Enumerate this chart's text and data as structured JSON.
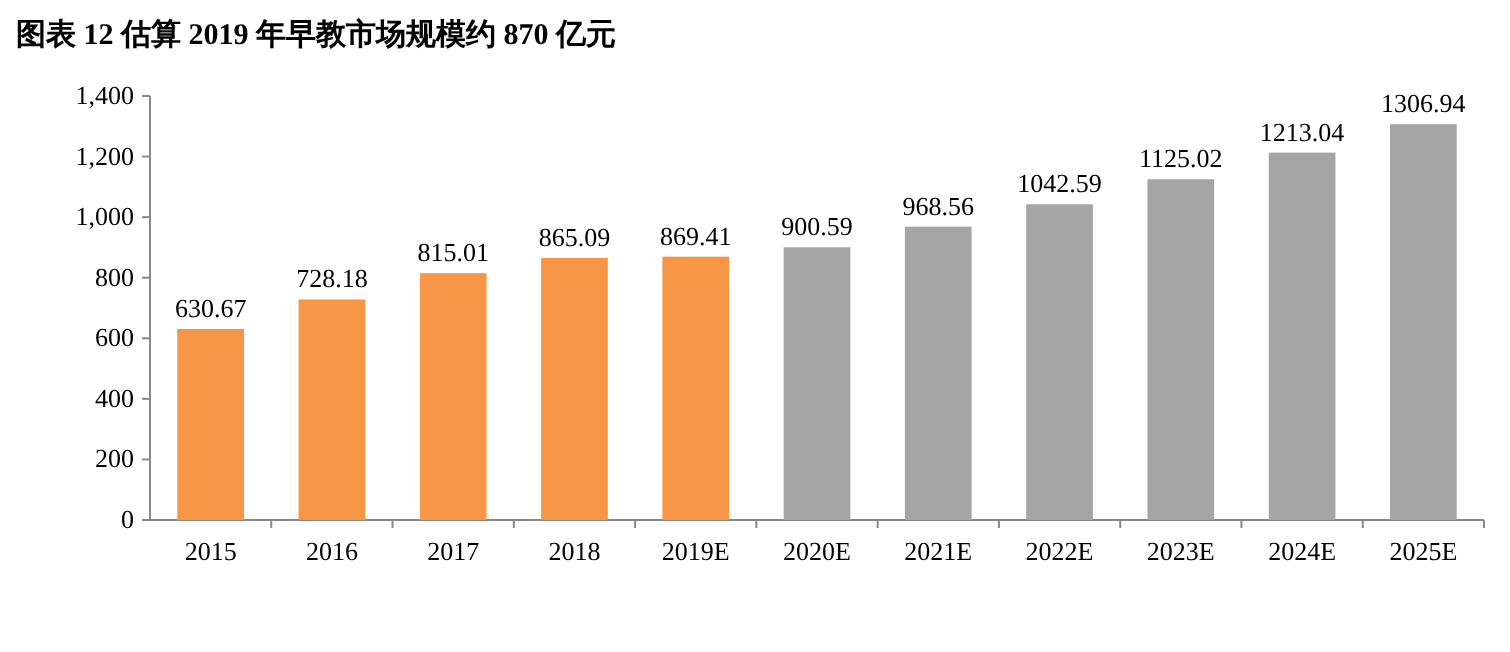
{
  "chart_data": {
    "type": "bar",
    "title": "图表 12 估算 2019 年早教市场规模约 870 亿元",
    "categories": [
      "2015",
      "2016",
      "2017",
      "2018",
      "2019E",
      "2020E",
      "2021E",
      "2022E",
      "2023E",
      "2024E",
      "2025E"
    ],
    "values": [
      630.67,
      728.18,
      815.01,
      865.09,
      869.41,
      900.59,
      968.56,
      1042.59,
      1125.02,
      1213.04,
      1306.94
    ],
    "colors": [
      "#f79646",
      "#f79646",
      "#f79646",
      "#f79646",
      "#f79646",
      "#a5a5a5",
      "#a5a5a5",
      "#a5a5a5",
      "#a5a5a5",
      "#a5a5a5",
      "#a5a5a5"
    ],
    "ylim": [
      0,
      1400
    ],
    "yticks": [
      0,
      200,
      400,
      600,
      800,
      {
        "value": 1000,
        "label": "1,000"
      },
      {
        "value": 1200,
        "label": "1,200"
      },
      {
        "value": 1400,
        "label": "1,400"
      }
    ],
    "data_labels": true,
    "grid": false
  }
}
